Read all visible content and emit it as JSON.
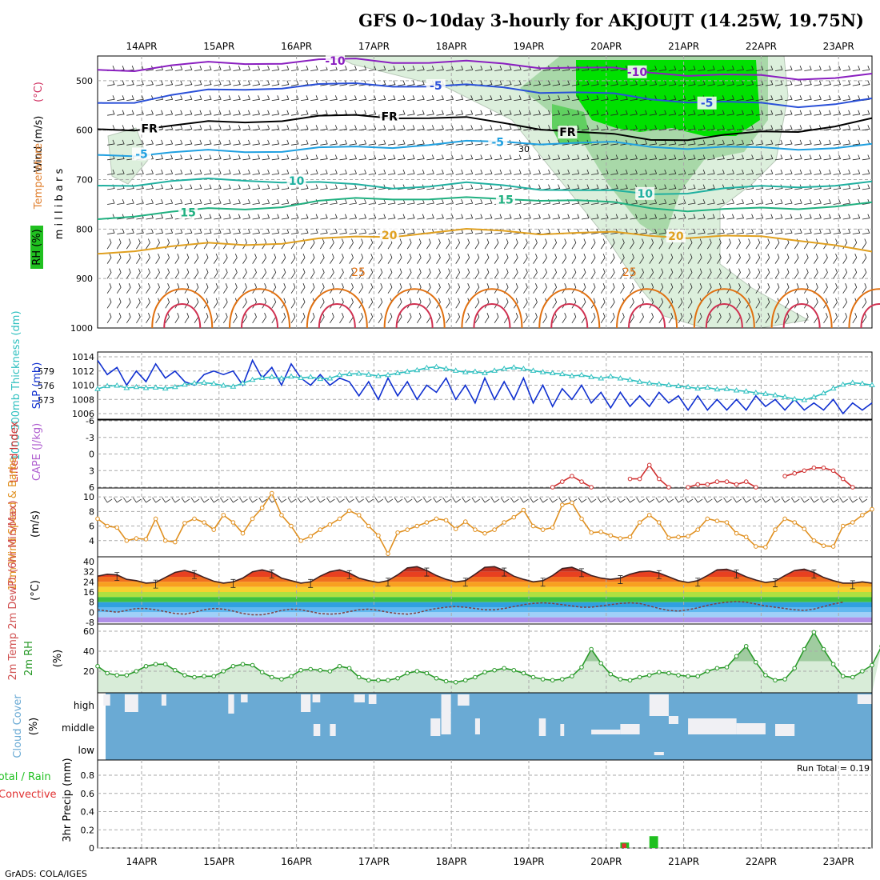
{
  "title": "GFS 0~10day 3-hourly for AKJOUJT (14.25W, 19.75N)",
  "credit": "GrADS: COLA/IGES",
  "run_total": "Run Total = 0.19",
  "colors": {
    "rh_green": "#00e000",
    "rh_mid": "#a8d8a8",
    "rh_light": "#dcefdc",
    "slp": "#1030d0",
    "thickness": "#30c0c0",
    "lifted": "#d03030",
    "wind10m": "#e09020",
    "rh2m": "#2a9a2a",
    "cloud": "#6aaad4",
    "precip_total": "#20c020",
    "precip_conv": "#e03030"
  },
  "chart_data": [
    {
      "type": "heatmap",
      "panel": "upper-air cross-section",
      "ylabel_parts": [
        "RH (%)",
        "Temperature",
        "(°C)",
        "Wind (m/s)"
      ],
      "yunit": "m i l l i b a r s",
      "y_ticks": [
        "500",
        "600",
        "700",
        "800",
        "900",
        "1000"
      ],
      "date_labels": [
        "14APR",
        "15APR",
        "16APR",
        "17APR",
        "18APR",
        "19APR",
        "20APR",
        "21APR",
        "22APR",
        "23APR"
      ],
      "isotherms": [
        {
          "label": "-10",
          "color": "#8a1fc0",
          "level_mb": [
            478,
            476,
            470,
            466,
            464,
            462,
            460,
            458,
            460,
            462,
            464,
            466,
            470,
            474,
            478,
            482,
            486,
            490,
            492,
            494,
            492,
            490
          ],
          "labels_at": [
            {
              "day": 2.5,
              "text": "-10"
            },
            {
              "day": 6.4,
              "text": "-10"
            }
          ]
        },
        {
          "label": "-5",
          "color": "#2a50d8",
          "level_mb": [
            545,
            540,
            530,
            522,
            516,
            512,
            510,
            508,
            508,
            510,
            512,
            514,
            520,
            524,
            530,
            536,
            540,
            545,
            548,
            550,
            545,
            540
          ],
          "labels_at": [
            {
              "day": 3.8,
              "text": "-5"
            },
            {
              "day": 7.3,
              "text": "-5"
            }
          ]
        },
        {
          "label": "FR",
          "color": "#000000",
          "level_mb": [
            598,
            596,
            592,
            586,
            582,
            578,
            574,
            572,
            572,
            574,
            578,
            586,
            594,
            604,
            612,
            618,
            616,
            612,
            606,
            600,
            590,
            580
          ],
          "labels_at": [
            {
              "day": 0.1,
              "text": "FR"
            },
            {
              "day": 3.2,
              "text": "FR"
            },
            {
              "day": 5.5,
              "text": "FR"
            }
          ]
        },
        {
          "label": "-5",
          "color": "#20a0e0",
          "level_mb": [
            650,
            648,
            646,
            644,
            642,
            640,
            638,
            636,
            632,
            628,
            626,
            624,
            624,
            626,
            628,
            632,
            634,
            636,
            638,
            636,
            634,
            632
          ],
          "labels_at": [
            {
              "day": 0.0,
              "text": "-5"
            },
            {
              "day": 4.6,
              "text": "-5"
            }
          ]
        },
        {
          "label": "10",
          "color": "#20b0a0",
          "level_mb": [
            712,
            708,
            704,
            702,
            700,
            702,
            708,
            712,
            714,
            712,
            710,
            712,
            716,
            722,
            726,
            728,
            724,
            720,
            716,
            712,
            710,
            708
          ],
          "labels_at": [
            {
              "day": 2.0,
              "text": "10"
            },
            {
              "day": 6.5,
              "text": "10"
            }
          ]
        },
        {
          "label": "15",
          "color": "#20b080",
          "level_mb": [
            780,
            770,
            766,
            762,
            758,
            752,
            746,
            740,
            736,
            738,
            740,
            740,
            738,
            742,
            750,
            756,
            760,
            762,
            760,
            756,
            752,
            750
          ],
          "labels_at": [
            {
              "day": 0.6,
              "text": "15"
            },
            {
              "day": 4.7,
              "text": "15"
            }
          ]
        },
        {
          "label": "20",
          "color": "#e0a020",
          "level_mb": [
            850,
            840,
            836,
            832,
            830,
            826,
            822,
            818,
            812,
            806,
            804,
            804,
            806,
            808,
            810,
            812,
            814,
            816,
            818,
            820,
            830,
            850
          ],
          "labels_at": [
            {
              "day": 3.2,
              "text": "20"
            },
            {
              "day": 6.9,
              "text": "20"
            }
          ]
        },
        {
          "label": "25",
          "color": "#e07010",
          "level_mb": [],
          "labels_at": [
            {
              "day": 2.8,
              "text": "25"
            },
            {
              "day": 6.3,
              "text": "25"
            }
          ]
        }
      ],
      "annotations": [
        "30"
      ]
    },
    {
      "type": "line",
      "panel": "SLP and thickness",
      "ylabel_left": "1000-500mb Thickness (dm)",
      "ylabel_right": "SLP (mb)",
      "left_ticks": [
        "579",
        "576",
        "573"
      ],
      "right_ticks": [
        "1014",
        "1012",
        "1010",
        "1008",
        "1006"
      ],
      "series": [
        {
          "name": "SLP (mb)",
          "axis": "right",
          "values": [
            1013.5,
            1011.5,
            1012.5,
            1010,
            1012,
            1010.5,
            1013,
            1011,
            1012,
            1010.5,
            1010,
            1011.5,
            1012,
            1011.5,
            1012,
            1010,
            1013.5,
            1011,
            1012.5,
            1010,
            1013,
            1011,
            1010,
            1011.5,
            1010,
            1011,
            1010.5,
            1008.5,
            1010.5,
            1008,
            1011,
            1008.5,
            1010.5,
            1008,
            1010,
            1009,
            1011,
            1008,
            1010,
            1007.5,
            1011,
            1008,
            1010.5,
            1008,
            1011,
            1007.5,
            1010,
            1007,
            1009.5,
            1008,
            1010,
            1007.5,
            1009,
            1006.8,
            1009,
            1007,
            1008.5,
            1007,
            1009,
            1007.5,
            1008.5,
            1006.5,
            1008.5,
            1006.5,
            1008,
            1006.5,
            1008,
            1006.5,
            1008.5,
            1007,
            1008,
            1006.5,
            1008,
            1006.5,
            1007.5,
            1006.5,
            1008,
            1006,
            1007.5,
            1006.5,
            1007.5
          ]
        },
        {
          "name": "1000-500mb Thickness (dm)",
          "axis": "left",
          "values": [
            575.3,
            575.9,
            576.0,
            575.5,
            575.7,
            575.5,
            575.6,
            575.4,
            575.7,
            576.2,
            576.5,
            576.6,
            576.4,
            576.0,
            575.8,
            576.5,
            577.2,
            577.6,
            577.8,
            577.5,
            577.9,
            577.6,
            577.8,
            577.4,
            577.5,
            578.2,
            578.4,
            578.5,
            578.3,
            578.0,
            578.2,
            578.6,
            578.9,
            579.2,
            579.7,
            579.9,
            579.5,
            579.1,
            578.8,
            578.9,
            578.6,
            579.1,
            579.5,
            579.8,
            579.5,
            579.1,
            578.8,
            578.6,
            578.4,
            578.0,
            578.2,
            577.8,
            577.5,
            577.9,
            577.5,
            577.2,
            576.8,
            576.5,
            576.3,
            576.1,
            575.9,
            575.7,
            575.4,
            575.6,
            575.2,
            575.3,
            575.0,
            574.8,
            574.5,
            574.3,
            574.0,
            573.6,
            573.2,
            573.0,
            573.6,
            574.4,
            575.4,
            576.2,
            576.6,
            576.4,
            576.1
          ]
        }
      ]
    },
    {
      "type": "line",
      "panel": "Lifted Index and CAPE",
      "ylabel_left": "Lifted Index",
      "ylabel_right": "CAPE (J/kg)",
      "y_ticks": [
        "-6",
        "-3",
        "0",
        "3",
        "6"
      ],
      "ylim": [
        6,
        -6
      ],
      "series": [
        {
          "name": "Lifted Index",
          "segments": [
            {
              "start_step": 47,
              "values": [
                6.0,
                5.0,
                4.0,
                5.0,
                6.0
              ]
            },
            {
              "start_step": 55,
              "values": [
                4.5,
                4.5,
                2.0,
                4.5,
                6.0
              ]
            },
            {
              "start_step": 61,
              "values": [
                6.0,
                5.5,
                5.5,
                5.0,
                5.0,
                5.5,
                5.0,
                6.0
              ]
            },
            {
              "start_step": 71,
              "values": [
                4.0,
                3.5,
                3.0,
                2.5,
                2.5,
                3.0,
                4.5,
                6.0
              ]
            }
          ]
        }
      ]
    },
    {
      "type": "line",
      "panel": "10m Wind Speed & Barbs",
      "ylabel": "10m Wind Speed & Barbs",
      "yunit": "(m/s)",
      "y_ticks": [
        "10",
        "8",
        "6",
        "4"
      ],
      "ylim": [
        2,
        11
      ],
      "series": [
        {
          "name": "10m Wind Speed",
          "values": [
            7,
            6,
            5.8,
            4,
            4.3,
            4.2,
            7,
            4,
            3.8,
            6.4,
            7,
            6.5,
            5.5,
            7.5,
            6.5,
            5,
            7,
            8.5,
            10.5,
            7.5,
            6,
            4,
            4.6,
            5.5,
            6.2,
            7,
            8.1,
            7.5,
            6,
            4.7,
            2.2,
            5.1,
            5.5,
            6,
            6.5,
            7,
            6.8,
            5.6,
            6.6,
            5.5,
            5,
            5.5,
            6.5,
            7.2,
            8.2,
            6,
            5.5,
            5.8,
            8.9,
            9.2,
            7,
            5.1,
            5.2,
            4.7,
            4.3,
            4.5,
            6.5,
            7.5,
            6.5,
            4.4,
            4.5,
            4.6,
            5.5,
            7,
            6.7,
            6.5,
            5,
            4.5,
            3.2,
            3.1,
            5.5,
            7,
            6.5,
            5.6,
            4,
            3.3,
            3.2,
            6,
            6.5,
            7.5,
            8.3
          ]
        }
      ]
    },
    {
      "type": "area",
      "panel": "2m Temp / 2m DewPt",
      "ylabel": "2m Temp 2m DewPt (6hr Min/Max)",
      "yunit": "(°C)",
      "y_ticks": [
        "40",
        "32",
        "24",
        "16",
        "8",
        "0",
        "-8"
      ],
      "series": [
        {
          "name": "2m Temp",
          "values": [
            28.5,
            30,
            29.5,
            26,
            25,
            23,
            23.5,
            27.5,
            31.5,
            33,
            31,
            27.5,
            24.5,
            23,
            24,
            27,
            32,
            33.5,
            31.5,
            27,
            25,
            23,
            24,
            28.5,
            32,
            33.5,
            31,
            27,
            25,
            23.5,
            25,
            29.5,
            35,
            36,
            33,
            29,
            26,
            24,
            25,
            30,
            35.5,
            36,
            33,
            28.5,
            26,
            24,
            25,
            29,
            34.5,
            35.5,
            32.5,
            29,
            27,
            26,
            27,
            30,
            32,
            32.5,
            31,
            28,
            25,
            23.5,
            25,
            29,
            33.5,
            34,
            31.5,
            28,
            25.5,
            23.5,
            24.5,
            29,
            33,
            34,
            31.5,
            27.5,
            25,
            23,
            23,
            24,
            23
          ]
        },
        {
          "name": "2m DewPt",
          "values": [
            2,
            1,
            0,
            1.5,
            3,
            3,
            2,
            0.5,
            -1,
            -1.5,
            0,
            2,
            3,
            2.5,
            1,
            -1,
            -2,
            -2,
            -0.5,
            1.5,
            2.5,
            2,
            0.5,
            -1,
            -1.5,
            -1,
            0.5,
            2,
            2.5,
            1.5,
            0,
            -1,
            -1.5,
            -0.5,
            1.5,
            3,
            4,
            4.5,
            4,
            3,
            2,
            2,
            3,
            4.5,
            6,
            7,
            7.5,
            7,
            6,
            5,
            4,
            4,
            5,
            6,
            7,
            7.5,
            7,
            5,
            3,
            1.5,
            1,
            2,
            3.5,
            5.5,
            7,
            8,
            8.5,
            8,
            6.5,
            5,
            4,
            3,
            2,
            1.5,
            2.5,
            4.5,
            6.5,
            8
          ]
        }
      ]
    },
    {
      "type": "area",
      "panel": "2m RH",
      "ylabel": "2m RH",
      "yunit": "(%)",
      "y_ticks": [
        "60",
        "40",
        "20"
      ],
      "ylim": [
        0,
        64
      ],
      "series": [
        {
          "name": "2m RH",
          "values": [
            25,
            18,
            16,
            16,
            20,
            25,
            27,
            27,
            21,
            16,
            14,
            15,
            15,
            20,
            25,
            27,
            26,
            19,
            14,
            12,
            15,
            21,
            22,
            21,
            20,
            25,
            23,
            14,
            11,
            11,
            11,
            13,
            18,
            20,
            18,
            13,
            10,
            9,
            11,
            14,
            19,
            21,
            23,
            21,
            18,
            14,
            12,
            11,
            12,
            15,
            24,
            42,
            28,
            17,
            12,
            11,
            14,
            16,
            19,
            18,
            16,
            15,
            15,
            20,
            23,
            24,
            35,
            45,
            29,
            16,
            11,
            12,
            23,
            42,
            59,
            42,
            27,
            15,
            14,
            20,
            26,
            45
          ]
        }
      ]
    },
    {
      "type": "heatmap",
      "panel": "Cloud Cover",
      "ylabel": "Cloud Cover",
      "yunit": "(%)",
      "row_labels": [
        "high",
        "middle",
        "low"
      ]
    },
    {
      "type": "bar",
      "panel": "3hr Precip",
      "ylabel": "3hr Precip (mm)",
      "legend": [
        "Total / Rain",
        "Convective"
      ],
      "y_ticks": [
        "0.8",
        "0.6",
        "0.4",
        "0.2",
        "0"
      ],
      "ylim": [
        0,
        0.95
      ],
      "series": [
        {
          "name": "Total / Rain",
          "bars": [
            {
              "step": 54,
              "value": 0.06
            },
            {
              "step": 57,
              "value": 0.13
            }
          ]
        },
        {
          "name": "Convective",
          "bars": [
            {
              "step": 54,
              "value": 0.05
            }
          ]
        }
      ]
    }
  ]
}
